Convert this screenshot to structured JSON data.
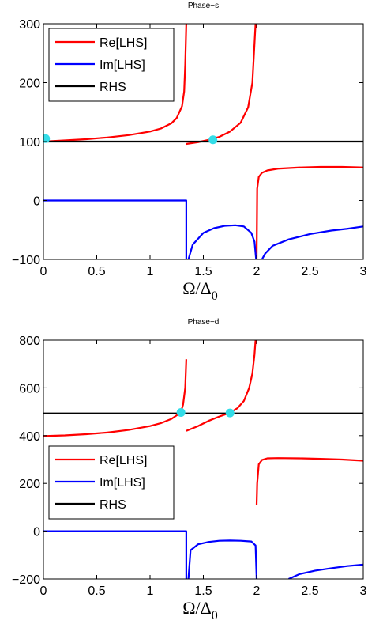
{
  "chart_data": [
    {
      "type": "line",
      "title": "Phase−s",
      "xlabel": "Ω/Δ",
      "xlabel_sub": "0",
      "ylabel": "",
      "xlim": [
        0,
        3
      ],
      "ylim": [
        -100,
        300
      ],
      "xticks": [
        "0",
        "0.5",
        "1",
        "1.5",
        "2",
        "2.5",
        "3"
      ],
      "yticks": [
        "−100",
        "0",
        "100",
        "200",
        "300"
      ],
      "legend_position": "top-left",
      "grid": false,
      "series": [
        {
          "name": "Re[LHS]",
          "color": "#ff0000",
          "segments": [
            [
              [
                0,
                100
              ],
              [
                0.2,
                102
              ],
              [
                0.4,
                104
              ],
              [
                0.6,
                107
              ],
              [
                0.8,
                111
              ],
              [
                1.0,
                117
              ],
              [
                1.1,
                122
              ],
              [
                1.2,
                131
              ],
              [
                1.25,
                140
              ],
              [
                1.3,
                160
              ],
              [
                1.32,
                185
              ],
              [
                1.33,
                230
              ],
              [
                1.34,
                300
              ]
            ],
            [
              [
                1.34,
                96
              ],
              [
                1.45,
                99
              ],
              [
                1.55,
                103
              ],
              [
                1.65,
                108
              ],
              [
                1.75,
                117
              ],
              [
                1.85,
                132
              ],
              [
                1.92,
                158
              ],
              [
                1.96,
                200
              ],
              [
                1.99,
                300
              ]
            ],
            [
              [
                2.0,
                -100
              ],
              [
                2.005,
                20
              ],
              [
                2.02,
                40
              ],
              [
                2.05,
                47
              ],
              [
                2.1,
                51
              ],
              [
                2.2,
                54
              ],
              [
                2.4,
                56
              ],
              [
                2.6,
                57
              ],
              [
                2.8,
                57
              ],
              [
                3.0,
                56
              ]
            ]
          ]
        },
        {
          "name": "Im[LHS]",
          "color": "#0000ff",
          "segments": [
            [
              [
                0,
                0
              ],
              [
                1.34,
                0
              ],
              [
                1.34,
                -100
              ]
            ],
            [
              [
                1.36,
                -100
              ],
              [
                1.4,
                -75
              ],
              [
                1.5,
                -55
              ],
              [
                1.6,
                -47
              ],
              [
                1.7,
                -43
              ],
              [
                1.8,
                -42
              ],
              [
                1.88,
                -44
              ],
              [
                1.95,
                -55
              ],
              [
                1.98,
                -70
              ],
              [
                1.995,
                -100
              ]
            ],
            [
              [
                2.05,
                -100
              ],
              [
                2.08,
                -90
              ],
              [
                2.15,
                -77
              ],
              [
                2.3,
                -66
              ],
              [
                2.5,
                -57
              ],
              [
                2.7,
                -51
              ],
              [
                2.85,
                -48
              ],
              [
                3.0,
                -44
              ]
            ]
          ]
        },
        {
          "name": "RHS",
          "color": "#000000",
          "segments": [
            [
              [
                0,
                100
              ],
              [
                3,
                100
              ]
            ]
          ]
        }
      ],
      "markers": {
        "color": "#33dde8",
        "points": [
          [
            0.02,
            105
          ],
          [
            1.59,
            103
          ]
        ]
      }
    },
    {
      "type": "line",
      "title": "Phase−d",
      "xlabel": "Ω/Δ",
      "xlabel_sub": "0",
      "ylabel": "",
      "xlim": [
        0,
        3
      ],
      "ylim": [
        -200,
        800
      ],
      "xticks": [
        "0",
        "0.5",
        "1",
        "1.5",
        "2",
        "2.5",
        "3"
      ],
      "yticks": [
        "−200",
        "0",
        "200",
        "400",
        "600",
        "800"
      ],
      "legend_position": "lower-left",
      "grid": false,
      "series": [
        {
          "name": "Re[LHS]",
          "color": "#ff0000",
          "segments": [
            [
              [
                0,
                398
              ],
              [
                0.2,
                401
              ],
              [
                0.4,
                406
              ],
              [
                0.6,
                413
              ],
              [
                0.8,
                424
              ],
              [
                1.0,
                440
              ],
              [
                1.1,
                452
              ],
              [
                1.2,
                470
              ],
              [
                1.25,
                485
              ],
              [
                1.29,
                500
              ],
              [
                1.31,
                530
              ],
              [
                1.33,
                600
              ],
              [
                1.34,
                720
              ]
            ],
            [
              [
                1.34,
                420
              ],
              [
                1.45,
                440
              ],
              [
                1.55,
                462
              ],
              [
                1.65,
                480
              ],
              [
                1.75,
                496
              ],
              [
                1.82,
                515
              ],
              [
                1.88,
                545
              ],
              [
                1.93,
                600
              ],
              [
                1.96,
                660
              ],
              [
                1.98,
                740
              ],
              [
                1.99,
                800
              ]
            ],
            [
              [
                2.0,
                110
              ],
              [
                2.005,
                200
              ],
              [
                2.02,
                280
              ],
              [
                2.05,
                298
              ],
              [
                2.1,
                305
              ],
              [
                2.2,
                306
              ],
              [
                2.4,
                305
              ],
              [
                2.6,
                303
              ],
              [
                2.8,
                300
              ],
              [
                3.0,
                295
              ]
            ]
          ]
        },
        {
          "name": "Im[LHS]",
          "color": "#0000ff",
          "segments": [
            [
              [
                0,
                0
              ],
              [
                1.34,
                0
              ],
              [
                1.34,
                -200
              ]
            ],
            [
              [
                1.36,
                -200
              ],
              [
                1.38,
                -80
              ],
              [
                1.45,
                -55
              ],
              [
                1.55,
                -45
              ],
              [
                1.65,
                -40
              ],
              [
                1.75,
                -39
              ],
              [
                1.85,
                -40
              ],
              [
                1.95,
                -43
              ],
              [
                1.99,
                -60
              ],
              [
                2.0,
                -200
              ]
            ],
            [
              [
                2.3,
                -200
              ],
              [
                2.4,
                -180
              ],
              [
                2.55,
                -165
              ],
              [
                2.7,
                -155
              ],
              [
                2.85,
                -146
              ],
              [
                3.0,
                -140
              ]
            ]
          ]
        },
        {
          "name": "RHS",
          "color": "#000000",
          "segments": [
            [
              [
                0,
                493
              ],
              [
                3,
                493
              ]
            ]
          ]
        }
      ],
      "markers": {
        "color": "#33dde8",
        "points": [
          [
            1.29,
            497
          ],
          [
            1.75,
            495
          ]
        ]
      }
    }
  ]
}
